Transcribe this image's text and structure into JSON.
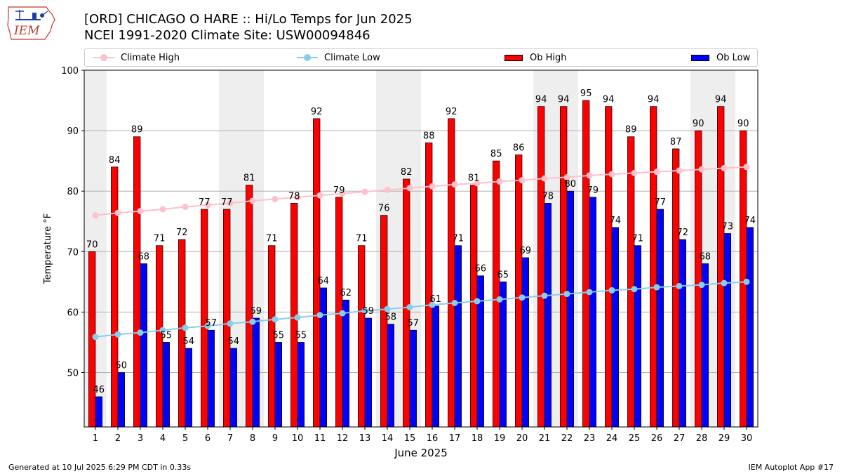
{
  "logo": {
    "text": "IEM",
    "icon": "iem-iowa-logo"
  },
  "header": {
    "title": "[ORD] CHICAGO O HARE :: Hi/Lo Temps for Jun 2025",
    "subtitle": "NCEI 1991-2020 Climate Site: USW00094846"
  },
  "legend": {
    "climate_high": "Climate High",
    "climate_low": "Climate Low",
    "ob_high": "Ob High",
    "ob_low": "Ob Low"
  },
  "footer": {
    "left": "Generated at 10 Jul 2025 6:29 PM CDT in 0.33s",
    "right": "IEM Autoplot App #17"
  },
  "colors": {
    "ob_high": "#ff0000",
    "ob_low": "#0000ff",
    "climate_high": "#ffc0cb",
    "climate_low": "#87ceeb",
    "weekend_shade": "#eeeeee",
    "grid": "#b0b0b0"
  },
  "chart_data": {
    "type": "bar",
    "xlabel": "June 2025",
    "ylabel": "Temperature °F",
    "ylim": [
      41,
      100
    ],
    "yticks": [
      50,
      60,
      70,
      80,
      90,
      100
    ],
    "grid": "horizontal",
    "legend_position": "top",
    "categories": [
      "1",
      "2",
      "3",
      "4",
      "5",
      "6",
      "7",
      "8",
      "9",
      "10",
      "11",
      "12",
      "13",
      "14",
      "15",
      "16",
      "17",
      "18",
      "19",
      "20",
      "21",
      "22",
      "23",
      "24",
      "25",
      "26",
      "27",
      "28",
      "29",
      "30"
    ],
    "shaded_days": [
      1,
      7,
      8,
      14,
      15,
      21,
      22,
      28,
      29
    ],
    "series": [
      {
        "name": "Ob High",
        "kind": "bar",
        "values": [
          70,
          84,
          89,
          71,
          72,
          77,
          77,
          81,
          71,
          78,
          92,
          79,
          71,
          76,
          82,
          88,
          92,
          81,
          85,
          86,
          94,
          94,
          95,
          94,
          89,
          94,
          87,
          90,
          94,
          90
        ]
      },
      {
        "name": "Ob Low",
        "kind": "bar",
        "values": [
          46,
          50,
          68,
          55,
          54,
          57,
          54,
          59,
          55,
          55,
          64,
          62,
          59,
          58,
          57,
          61,
          71,
          66,
          65,
          69,
          78,
          80,
          79,
          74,
          71,
          77,
          72,
          68,
          73,
          74
        ]
      },
      {
        "name": "Climate High",
        "kind": "line",
        "values": [
          76.0,
          76.4,
          76.7,
          77.0,
          77.4,
          77.7,
          78.0,
          78.4,
          78.7,
          79.0,
          79.3,
          79.6,
          79.9,
          80.2,
          80.5,
          80.8,
          81.1,
          81.3,
          81.6,
          81.8,
          82.1,
          82.3,
          82.6,
          82.8,
          83.0,
          83.2,
          83.4,
          83.6,
          83.8,
          84.0
        ]
      },
      {
        "name": "Climate Low",
        "kind": "line",
        "values": [
          55.9,
          56.3,
          56.6,
          57.0,
          57.4,
          57.7,
          58.1,
          58.4,
          58.8,
          59.1,
          59.5,
          59.8,
          60.2,
          60.5,
          60.8,
          61.2,
          61.5,
          61.8,
          62.1,
          62.4,
          62.7,
          63.0,
          63.3,
          63.6,
          63.8,
          64.1,
          64.3,
          64.5,
          64.8,
          65.0
        ]
      }
    ]
  }
}
